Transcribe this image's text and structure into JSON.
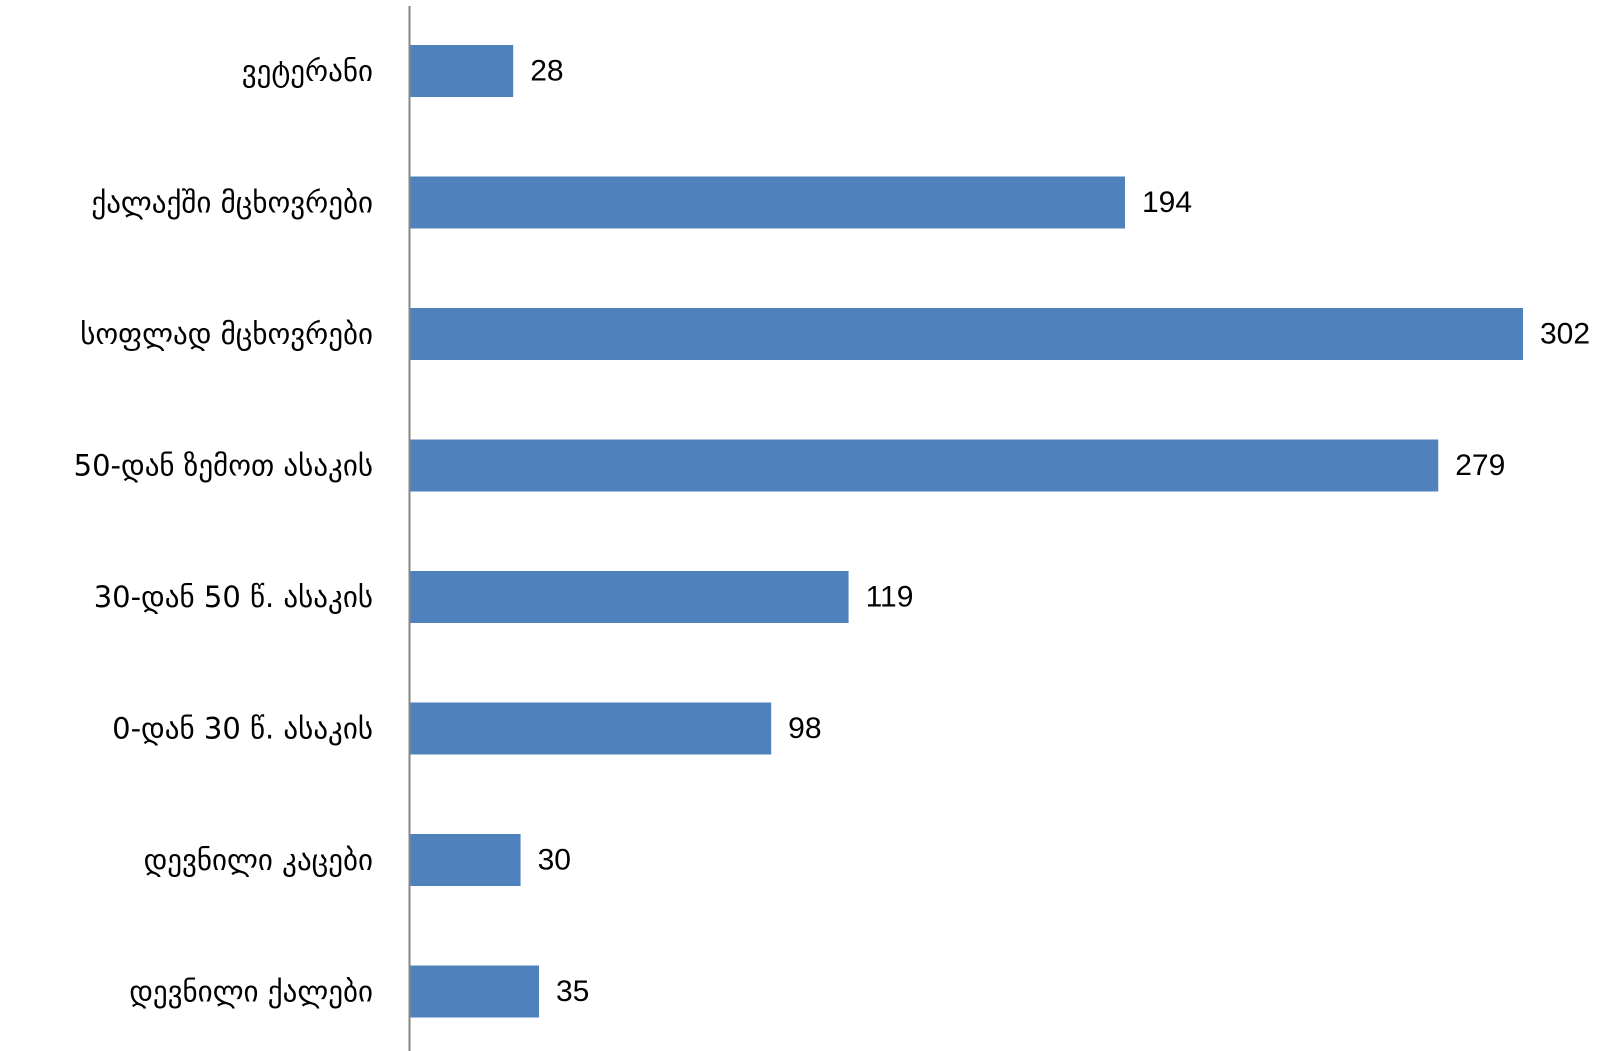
{
  "chart_data": {
    "type": "bar",
    "orientation": "horizontal",
    "categories": [
      "ვეტერანი",
      "ქალაქში მცხოვრები",
      "სოფლად მცხოვრები",
      "50-დან ზემოთ ასაკის",
      "30-დან 50 წ. ასაკის",
      "0-დან 30 წ. ასაკის",
      "დევნილი კაცები",
      "დევნილი ქალები"
    ],
    "values": [
      28,
      194,
      302,
      279,
      119,
      98,
      30,
      35
    ],
    "data_labels": [
      "28",
      "194",
      "302",
      "279",
      "119",
      "98",
      "30",
      "35"
    ],
    "title": "",
    "xlabel": "",
    "ylabel": "",
    "xlim": [
      0,
      302
    ],
    "grid": false,
    "legend": "none",
    "bar_color": "#4F81BD",
    "axis_color": "#868686"
  }
}
